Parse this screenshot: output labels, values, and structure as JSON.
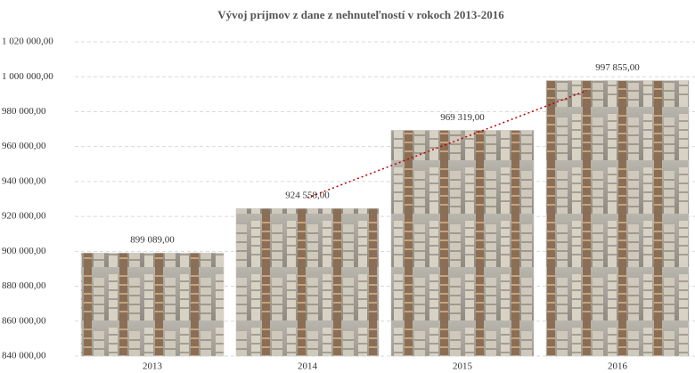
{
  "chart_data": {
    "type": "bar",
    "title": "Vývoj príjmov z dane z nehnuteľností v rokoch 2013-2016",
    "categories": [
      "2013",
      "2014",
      "2015",
      "2016"
    ],
    "values": [
      899089,
      924558,
      969319,
      997855
    ],
    "value_labels": [
      "899 089,00",
      "924 558,00",
      "969 319,00",
      "997 855,00"
    ],
    "ylim": [
      840000,
      1020000
    ],
    "yticks": [
      {
        "value": 840000,
        "label": "840 000,00"
      },
      {
        "value": 860000,
        "label": "860 000,00"
      },
      {
        "value": 880000,
        "label": "880 000,00"
      },
      {
        "value": 900000,
        "label": "900 000,00"
      },
      {
        "value": 920000,
        "label": "920 000,00"
      },
      {
        "value": 940000,
        "label": "940 000,00"
      },
      {
        "value": 960000,
        "label": "960 000,00"
      },
      {
        "value": 980000,
        "label": "980 000,00"
      },
      {
        "value": 1000000,
        "label": "1 000 000,00"
      },
      {
        "value": 1020000,
        "label": "1 020 000,00"
      }
    ],
    "grid": true,
    "trendline": true
  }
}
